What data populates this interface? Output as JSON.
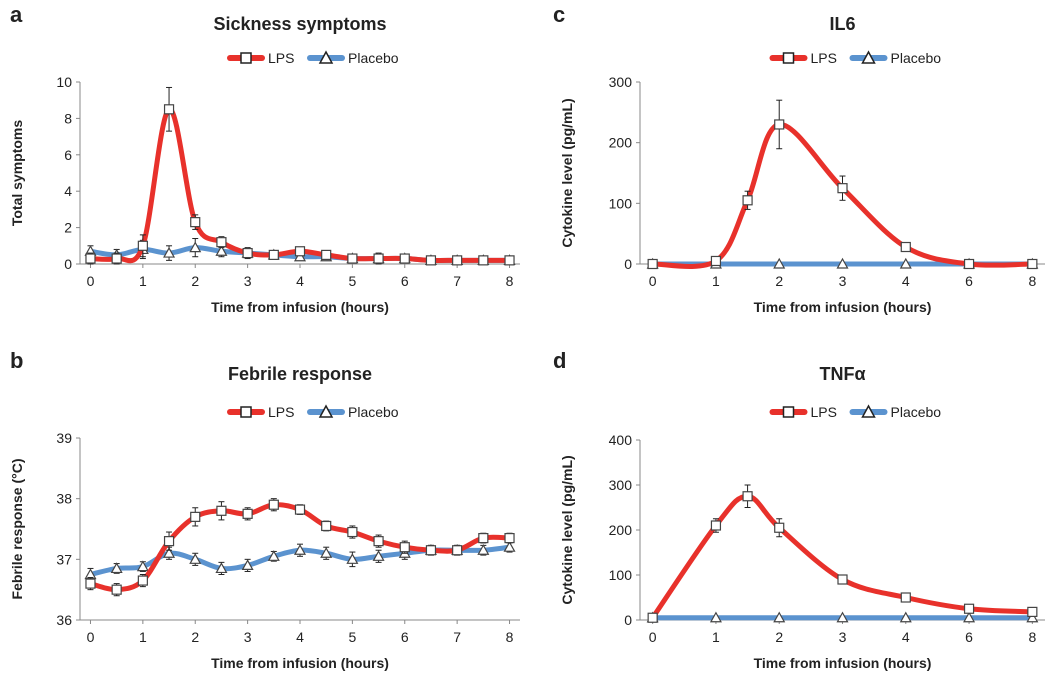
{
  "colors": {
    "lps": "#e8312b",
    "placebo": "#5b93cf",
    "axis": "#888888",
    "text": "#222222"
  },
  "chart_data": [
    {
      "id": "a",
      "letter": "a",
      "type": "line",
      "title": "Sickness symptoms",
      "xlabel": "Time from infusion  (hours)",
      "ylabel": "Total symptoms",
      "xlim": [
        -0.2,
        8.2
      ],
      "ylim": [
        0,
        10
      ],
      "xticks": [
        0,
        1,
        2,
        3,
        4,
        5,
        6,
        7,
        8
      ],
      "yticks": [
        0,
        2,
        4,
        6,
        8,
        10
      ],
      "legend": "top-center",
      "series": [
        {
          "name": "LPS",
          "marker": "square",
          "color": "#e8312b",
          "x": [
            0,
            0.5,
            1,
            1.5,
            2,
            2.5,
            3,
            3.5,
            4,
            4.5,
            5,
            5.5,
            6,
            6.5,
            7,
            7.5,
            8
          ],
          "y": [
            0.3,
            0.3,
            1.0,
            8.5,
            2.3,
            1.2,
            0.6,
            0.5,
            0.7,
            0.5,
            0.3,
            0.3,
            0.3,
            0.2,
            0.2,
            0.2,
            0.2
          ],
          "err": [
            0.3,
            0.3,
            0.6,
            1.2,
            0.4,
            0.3,
            0.2,
            0.2,
            0.2,
            0.2,
            0.1,
            0.1,
            0.1,
            0.1,
            0.1,
            0.1,
            0.1
          ]
        },
        {
          "name": "Placebo",
          "marker": "triangle",
          "color": "#5b93cf",
          "x": [
            0,
            0.5,
            1,
            1.5,
            2,
            2.5,
            3,
            3.5,
            4,
            4.5,
            5,
            5.5,
            6,
            6.5,
            7,
            7.5,
            8
          ],
          "y": [
            0.7,
            0.5,
            0.8,
            0.6,
            0.9,
            0.7,
            0.6,
            0.5,
            0.4,
            0.4,
            0.3,
            0.3,
            0.3,
            0.2,
            0.2,
            0.2,
            0.2
          ],
          "err": [
            0.3,
            0.3,
            0.5,
            0.4,
            0.5,
            0.3,
            0.3,
            0.2,
            0.2,
            0.2,
            0.2,
            0.3,
            0.2,
            0.2,
            0.1,
            0.1,
            0.1
          ]
        }
      ]
    },
    {
      "id": "b",
      "letter": "b",
      "type": "line",
      "title": "Febrile response",
      "xlabel": "Time from infusion  (hours)",
      "ylabel": "Febrile response (°C)",
      "xlim": [
        -0.2,
        8.2
      ],
      "ylim": [
        36,
        39
      ],
      "xticks": [
        0,
        1,
        2,
        3,
        4,
        5,
        6,
        7,
        8
      ],
      "yticks": [
        36,
        37,
        38,
        39
      ],
      "legend": "top-center",
      "series": [
        {
          "name": "LPS",
          "marker": "square",
          "color": "#e8312b",
          "x": [
            0,
            0.5,
            1,
            1.5,
            2,
            2.5,
            3,
            3.5,
            4,
            4.5,
            5,
            5.5,
            6,
            6.5,
            7,
            7.5,
            8
          ],
          "y": [
            36.6,
            36.5,
            36.65,
            37.3,
            37.7,
            37.8,
            37.75,
            37.9,
            37.82,
            37.55,
            37.45,
            37.3,
            37.2,
            37.15,
            37.15,
            37.35,
            37.35
          ],
          "err": [
            0.1,
            0.1,
            0.1,
            0.15,
            0.15,
            0.15,
            0.1,
            0.1,
            0.08,
            0.08,
            0.1,
            0.1,
            0.1,
            0.08,
            0.08,
            0.08,
            0.08
          ]
        },
        {
          "name": "Placebo",
          "marker": "triangle",
          "color": "#5b93cf",
          "x": [
            0,
            0.5,
            1,
            1.5,
            2,
            2.5,
            3,
            3.5,
            4,
            4.5,
            5,
            5.5,
            6,
            6.5,
            7,
            7.5,
            8
          ],
          "y": [
            36.75,
            36.85,
            36.88,
            37.1,
            37.0,
            36.85,
            36.9,
            37.05,
            37.15,
            37.1,
            37.0,
            37.05,
            37.1,
            37.15,
            37.15,
            37.15,
            37.2
          ],
          "err": [
            0.1,
            0.08,
            0.08,
            0.1,
            0.1,
            0.1,
            0.1,
            0.08,
            0.1,
            0.1,
            0.12,
            0.1,
            0.1,
            0.08,
            0.08,
            0.08,
            0.08
          ]
        }
      ]
    },
    {
      "id": "c",
      "letter": "c",
      "type": "line",
      "title": "IL6",
      "xlabel": "Time from infusion  (hours)",
      "ylabel": "Cytokine level (pg/mL)",
      "xlim": [
        -0.2,
        8.2
      ],
      "ylim": [
        0,
        300
      ],
      "xticks": [
        0,
        1,
        2,
        3,
        4,
        6,
        8
      ],
      "tick_positions": [
        0,
        1,
        2,
        3,
        4,
        5,
        6
      ],
      "yticks": [
        0,
        100,
        200,
        300
      ],
      "legend": "top-center",
      "series": [
        {
          "name": "LPS",
          "marker": "square",
          "color": "#e8312b",
          "x": [
            0,
            1,
            1.5,
            2,
            3,
            4,
            6,
            8
          ],
          "y": [
            0,
            5,
            105,
            230,
            125,
            28,
            0,
            0
          ],
          "err": [
            0,
            3,
            15,
            40,
            20,
            5,
            0,
            0
          ],
          "markers_at": [
            1,
            1.5,
            2,
            3,
            4
          ]
        },
        {
          "name": "Placebo",
          "marker": "triangle",
          "color": "#5b93cf",
          "x": [
            0,
            1,
            2,
            3,
            4,
            6,
            8
          ],
          "y": [
            0,
            0,
            0,
            0,
            0,
            0,
            0
          ],
          "err": [
            0,
            0,
            0,
            0,
            0,
            0,
            0
          ]
        }
      ]
    },
    {
      "id": "d",
      "letter": "d",
      "type": "line",
      "title": "TNFα",
      "xlabel": "Time from infusion  (hours)",
      "ylabel": "Cytokine level (pg/mL)",
      "xlim": [
        -0.2,
        8.2
      ],
      "ylim": [
        0,
        400
      ],
      "xticks": [
        0,
        1,
        2,
        3,
        4,
        6,
        8
      ],
      "yticks": [
        0,
        100,
        200,
        300,
        400
      ],
      "legend": "top-center",
      "series": [
        {
          "name": "LPS",
          "marker": "square",
          "color": "#e8312b",
          "x": [
            0,
            1,
            1.5,
            2,
            3,
            4,
            6,
            8
          ],
          "y": [
            5,
            210,
            275,
            205,
            90,
            50,
            25,
            18
          ],
          "err": [
            2,
            15,
            25,
            20,
            8,
            5,
            5,
            5
          ]
        },
        {
          "name": "Placebo",
          "marker": "triangle",
          "color": "#5b93cf",
          "x": [
            0,
            1,
            2,
            3,
            4,
            6,
            8
          ],
          "y": [
            5,
            5,
            5,
            5,
            5,
            5,
            5
          ],
          "err": [
            0,
            0,
            0,
            0,
            0,
            0,
            0
          ]
        }
      ]
    }
  ]
}
